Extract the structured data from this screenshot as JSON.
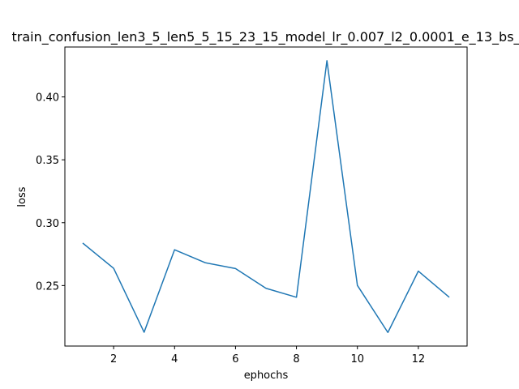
{
  "chart_data": {
    "type": "line",
    "title": "train_confusion_len3_5_len5_5_15_23_15_model_lr_0.007_l2_0.0001_e_13_bs_",
    "xlabel": "ephochs",
    "ylabel": "loss",
    "x": [
      1,
      2,
      3,
      4,
      5,
      6,
      7,
      8,
      9,
      10,
      11,
      12,
      13
    ],
    "series": [
      {
        "color": "#1f77b4",
        "values": [
          0.2835,
          0.2637,
          0.2129,
          0.2785,
          0.2682,
          0.2635,
          0.2478,
          0.2407,
          0.4288,
          0.2501,
          0.2127,
          0.2615,
          0.241
        ]
      }
    ],
    "xlim": [
      0.4,
      13.6
    ],
    "ylim": [
      0.2019,
      0.4397
    ],
    "xticks": [
      2,
      4,
      6,
      8,
      10,
      12
    ],
    "yticks": [
      0.25,
      0.3,
      0.35,
      0.4
    ],
    "xtick_labels": [
      "2",
      "4",
      "6",
      "8",
      "10",
      "12"
    ],
    "ytick_labels": [
      "0.25",
      "0.30",
      "0.35",
      "0.40"
    ],
    "grid": false,
    "legend": "none"
  }
}
